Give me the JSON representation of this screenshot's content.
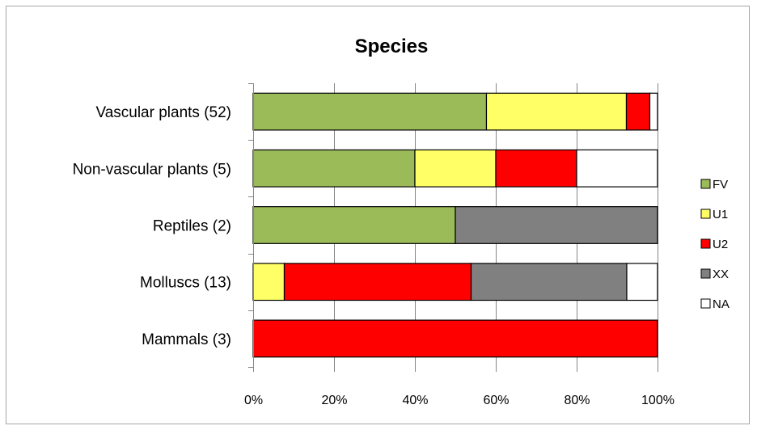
{
  "chart_data": {
    "type": "bar",
    "orientation": "horizontal",
    "stacked": "percent",
    "title": "Species",
    "xlabel": "",
    "ylabel": "",
    "xlim": [
      0,
      100
    ],
    "x_ticks": [
      "0%",
      "20%",
      "40%",
      "60%",
      "80%",
      "100%"
    ],
    "categories": [
      "Vascular plants (52)",
      "Non-vascular plants (5)",
      "Reptiles (2)",
      "Molluscs (13)",
      "Mammals (3)"
    ],
    "series": [
      {
        "name": "FV",
        "color": "#9bbb59",
        "values": [
          57.7,
          40,
          50,
          0,
          0
        ]
      },
      {
        "name": "U1",
        "color": "#ffff66",
        "values": [
          34.6,
          20,
          0,
          7.7,
          0
        ]
      },
      {
        "name": "U2",
        "color": "#ff0000",
        "values": [
          5.8,
          20,
          0,
          46.2,
          100
        ]
      },
      {
        "name": "XX",
        "color": "#808080",
        "values": [
          0,
          0,
          50,
          38.5,
          0
        ]
      },
      {
        "name": "NA",
        "color": "#ffffff",
        "values": [
          1.9,
          20,
          0,
          7.6,
          0
        ]
      }
    ],
    "grid": true,
    "legend_position": "right"
  }
}
